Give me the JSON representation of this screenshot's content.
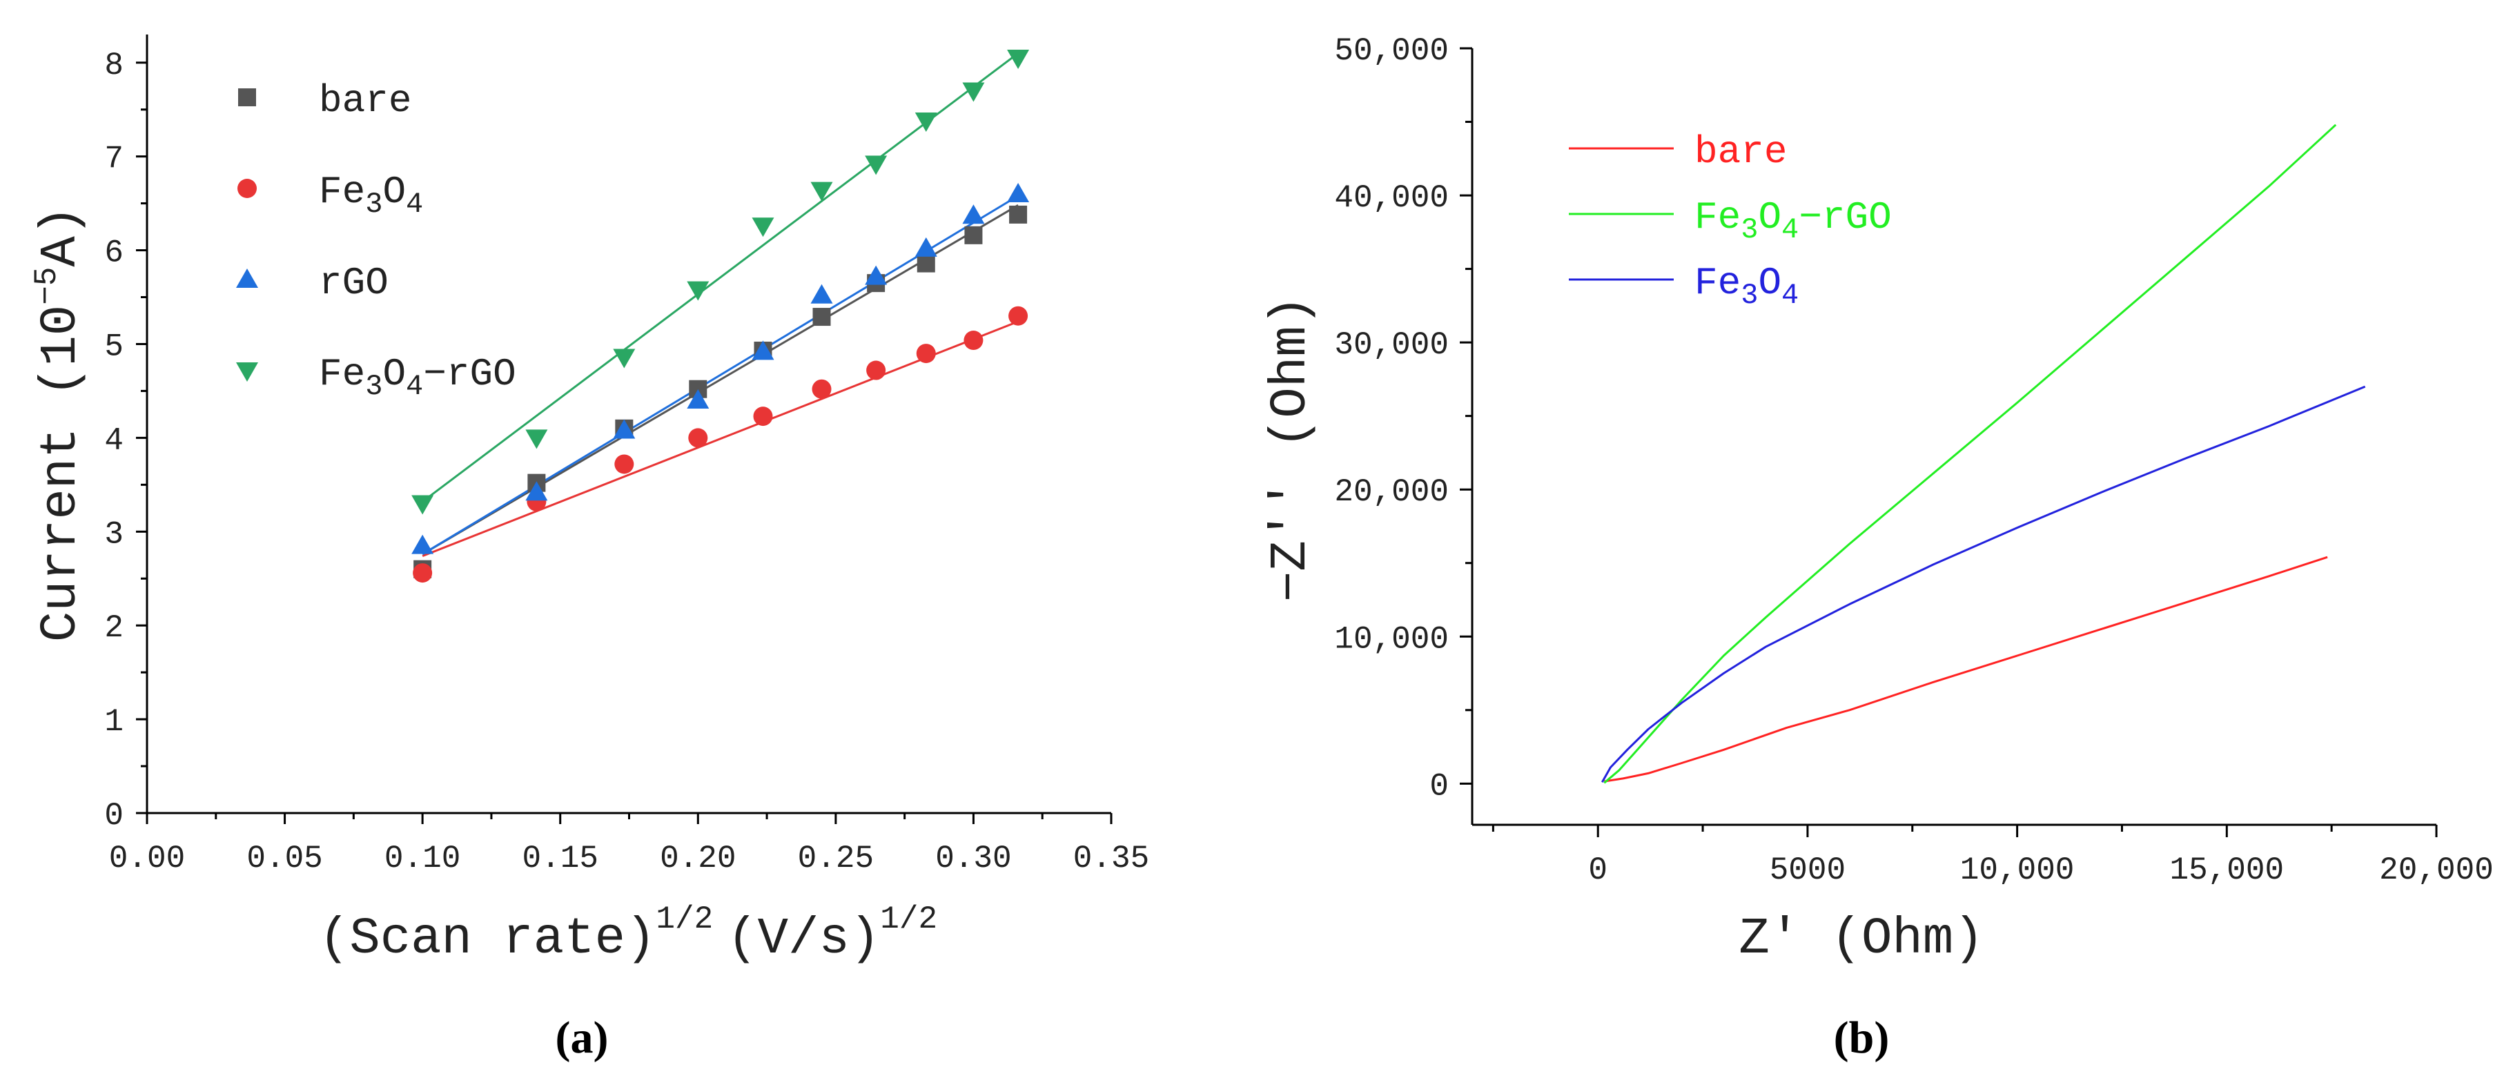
{
  "chart_data": [
    {
      "type": "scatter",
      "panel_label": "(a)",
      "xlabel_main": "(Scan rate)",
      "xlabel_exp1": "1/2",
      "xlabel_unit": "(V/s)",
      "xlabel_exp2": "1/2",
      "ylabel_main": "Current (10",
      "ylabel_exp": "−5",
      "ylabel_unit": "A)",
      "xlim": [
        0.0,
        0.35
      ],
      "ylim": [
        0,
        8.3
      ],
      "x_ticks": [
        "0.00",
        "0.05",
        "0.10",
        "0.15",
        "0.20",
        "0.25",
        "0.30",
        "0.35"
      ],
      "y_ticks": [
        "0",
        "1",
        "2",
        "3",
        "4",
        "5",
        "6",
        "7",
        "8"
      ],
      "x": [
        0.1,
        0.1414,
        0.1732,
        0.2,
        0.2236,
        0.2449,
        0.2646,
        0.2828,
        0.3,
        0.3162
      ],
      "series": [
        {
          "name": "bare",
          "color": "#555555",
          "marker": "square",
          "values": [
            2.6,
            3.52,
            4.1,
            4.52,
            4.93,
            5.29,
            5.65,
            5.86,
            6.16,
            6.38
          ],
          "fit": [
            2.76,
            6.48
          ]
        },
        {
          "name": "Fe3O4",
          "color": "#e83535",
          "marker": "circle",
          "values": [
            2.56,
            3.32,
            3.72,
            4.0,
            4.23,
            4.52,
            4.72,
            4.9,
            5.04,
            5.3
          ],
          "fit": [
            2.74,
            5.24
          ]
        },
        {
          "name": "rGO",
          "color": "#1f6fdc",
          "marker": "triangle-up",
          "values": [
            2.85,
            3.42,
            4.08,
            4.4,
            4.92,
            5.52,
            5.72,
            6.02,
            6.37,
            6.6
          ],
          "fit": [
            2.76,
            6.58
          ]
        },
        {
          "name": "Fe3O4-rGO",
          "color": "#2aa763",
          "marker": "triangle-down",
          "values": [
            3.3,
            4.0,
            4.86,
            5.58,
            6.26,
            6.64,
            6.92,
            7.38,
            7.7,
            8.05
          ],
          "fit": [
            3.32,
            8.1
          ]
        }
      ],
      "legend": [
        {
          "text": "bare",
          "sub1": "",
          "mid": "",
          "sub2": "",
          "tail": ""
        },
        {
          "text": "Fe",
          "sub1": "3",
          "mid": "O",
          "sub2": "4",
          "tail": ""
        },
        {
          "text": "rGO",
          "sub1": "",
          "mid": "",
          "sub2": "",
          "tail": ""
        },
        {
          "text": "Fe",
          "sub1": "3",
          "mid": "O",
          "sub2": "4",
          "tail": "−rGO"
        }
      ]
    },
    {
      "type": "line",
      "panel_label": "(b)",
      "xlabel": "Z' (Ohm)",
      "ylabel": "−Z'' (Ohm)",
      "xlim": [
        -3000,
        20000
      ],
      "ylim": [
        -2800,
        50000
      ],
      "x_ticks": [
        "0",
        "5000",
        "10,000",
        "15,000",
        "20,000"
      ],
      "x_tick_values": [
        0,
        5000,
        10000,
        15000,
        20000
      ],
      "y_ticks": [
        "0",
        "10,000",
        "20,000",
        "30,000",
        "40,000",
        "50,000"
      ],
      "y_tick_values": [
        0,
        10000,
        20000,
        30000,
        40000,
        50000
      ],
      "series": [
        {
          "name": "bare",
          "color": "#ff2222",
          "x": [
            150,
            600,
            1200,
            2000,
            3000,
            4500,
            6000,
            8000,
            10000,
            12000,
            14000,
            16000,
            17400
          ],
          "y": [
            150,
            350,
            700,
            1400,
            2300,
            3800,
            5000,
            6900,
            8700,
            10500,
            12300,
            14100,
            15400
          ]
        },
        {
          "name": "Fe3O4-rGO",
          "color": "#22ee22",
          "x": [
            150,
            500,
            1000,
            2000,
            3000,
            4000,
            6000,
            8000,
            10000,
            12000,
            14000,
            16000,
            17600
          ],
          "y": [
            50,
            900,
            2500,
            5700,
            8700,
            11300,
            16300,
            21100,
            25900,
            30800,
            35700,
            40600,
            44800
          ]
        },
        {
          "name": "Fe3O4",
          "color": "#2222dd",
          "x": [
            100,
            300,
            700,
            1200,
            2000,
            3000,
            4000,
            6000,
            8000,
            10000,
            12000,
            14000,
            16000,
            18300
          ],
          "y": [
            100,
            1100,
            2300,
            3700,
            5500,
            7500,
            9300,
            12200,
            14900,
            17400,
            19800,
            22100,
            24300,
            27000
          ]
        }
      ],
      "legend": [
        {
          "text": "bare",
          "sub1": "",
          "mid": "",
          "sub2": "",
          "tail": ""
        },
        {
          "text": "Fe",
          "sub1": "3",
          "mid": "O",
          "sub2": "4",
          "tail": "−rGO"
        },
        {
          "text": "Fe",
          "sub1": "3",
          "mid": "O",
          "sub2": "4",
          "tail": ""
        }
      ]
    }
  ]
}
